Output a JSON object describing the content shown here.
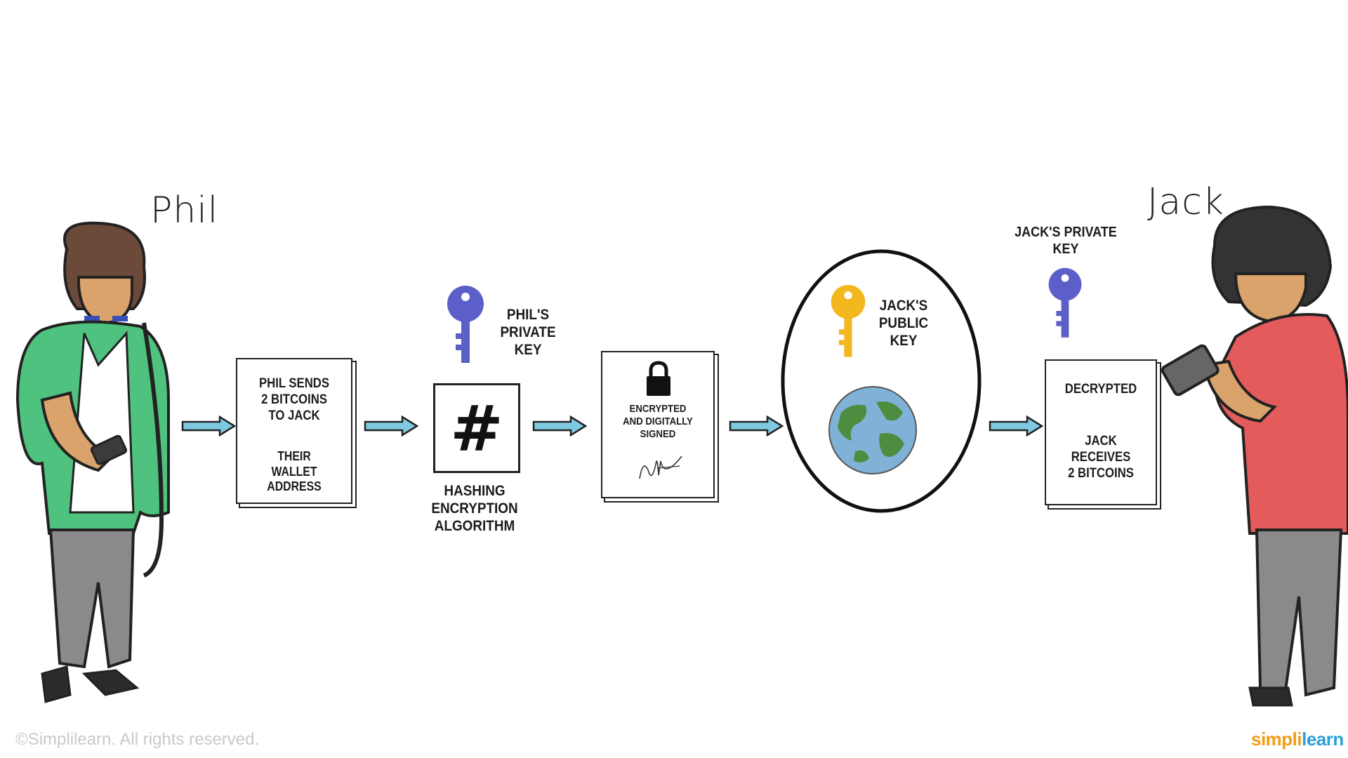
{
  "people": {
    "sender": {
      "name": "Phil"
    },
    "receiver": {
      "name": "Jack"
    }
  },
  "steps": {
    "transaction_note": {
      "line1": "PHIL SENDS\n2 BITCOINS\nTO JACK",
      "line2": "THEIR\nWALLET\nADDRESS"
    },
    "phil_key": {
      "label": "PHIL'S\nPRIVATE\nKEY",
      "color": "#5b5fc7"
    },
    "hashing": {
      "symbol": "#",
      "label": "HASHING\nENCRYPTION\nALGORITHM"
    },
    "encrypted_note": {
      "label": "ENCRYPTED\nAND DIGITALLY\nSIGNED"
    },
    "network": {
      "key_label": "JACK'S\nPUBLIC\nKEY",
      "key_color": "#f2b81e"
    },
    "jack_key": {
      "label": "JACK'S PRIVATE\nKEY",
      "color": "#5b5fc7"
    },
    "decrypted_note": {
      "line1": "DECRYPTED",
      "line2": "JACK\nRECEIVES\n2 BITCOINS"
    }
  },
  "footer": {
    "copyright": "©Simplilearn. All rights reserved.",
    "brand_a": "simpl",
    "brand_b": "i",
    "brand_c": "learn",
    "brand_color_a": "#f39c12",
    "brand_color_b": "#2b9fd9"
  },
  "colors": {
    "arrow": "#7ec8e0",
    "phil_shirt": "#4ec27e",
    "jack_shirt": "#e35b5b",
    "pants": "#8a8a8a"
  }
}
